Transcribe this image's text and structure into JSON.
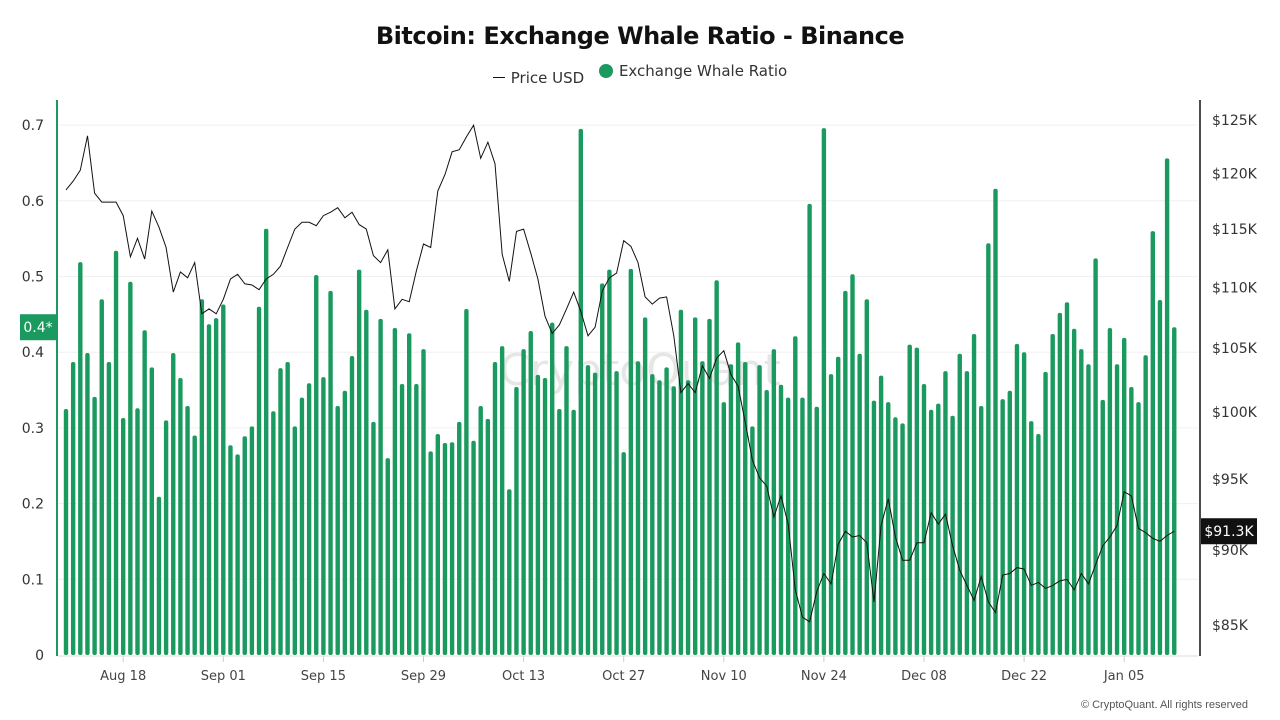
{
  "chart_data": {
    "type": "bar+line",
    "title": "Bitcoin: Exchange Whale Ratio - Binance",
    "legend": [
      "Price USD",
      "Exchange Whale Ratio"
    ],
    "legend_placement": "top-center",
    "colors": {
      "bars": "#1a9a5e",
      "price": "#111111",
      "left_axis": "#1a9a5e",
      "right_axis": "#111111"
    },
    "x_tick_labels": [
      "Aug 18",
      "Sep 01",
      "Sep 15",
      "Sep 29",
      "Oct 13",
      "Oct 27",
      "Nov 10",
      "Nov 24",
      "Dec 08",
      "Dec 22",
      "Jan 05"
    ],
    "left_axis": {
      "ticks": [
        "0",
        "0.1",
        "0.2",
        "0.3",
        "0.4",
        "0.5",
        "0.6",
        "0.7"
      ],
      "ylim": [
        0,
        0.7
      ]
    },
    "right_axis": {
      "scale": "log",
      "ticks": [
        "$85K",
        "$90K",
        "$95K",
        "$100K",
        "$105K",
        "$110K",
        "$115K",
        "$120K",
        "$125K"
      ],
      "ylim_k": [
        83,
        127
      ]
    },
    "grid": "horizontal",
    "current_ratio_label": "0.4*",
    "current_price_label": "$91.3K",
    "x": [
      "Aug 10",
      "Aug 11",
      "Aug 12",
      "Aug 13",
      "Aug 14",
      "Aug 15",
      "Aug 16",
      "Aug 17",
      "Aug 18",
      "Aug 19",
      "Aug 20",
      "Aug 21",
      "Aug 22",
      "Aug 23",
      "Aug 24",
      "Aug 25",
      "Aug 26",
      "Aug 27",
      "Aug 28",
      "Aug 29",
      "Aug 30",
      "Aug 31",
      "Sep 01",
      "Sep 02",
      "Sep 03",
      "Sep 04",
      "Sep 05",
      "Sep 06",
      "Sep 07",
      "Sep 08",
      "Sep 09",
      "Sep 10",
      "Sep 11",
      "Sep 12",
      "Sep 13",
      "Sep 14",
      "Sep 15",
      "Sep 16",
      "Sep 17",
      "Sep 18",
      "Sep 19",
      "Sep 20",
      "Sep 21",
      "Sep 22",
      "Sep 23",
      "Sep 24",
      "Sep 25",
      "Sep 26",
      "Sep 27",
      "Sep 28",
      "Sep 29",
      "Sep 30",
      "Oct 01",
      "Oct 02",
      "Oct 03",
      "Oct 04",
      "Oct 05",
      "Oct 06",
      "Oct 07",
      "Oct 08",
      "Oct 09",
      "Oct 10",
      "Oct 11",
      "Oct 12",
      "Oct 13",
      "Oct 14",
      "Oct 15",
      "Oct 16",
      "Oct 17",
      "Oct 18",
      "Oct 19",
      "Oct 20",
      "Oct 21",
      "Oct 22",
      "Oct 23",
      "Oct 24",
      "Oct 25",
      "Oct 26",
      "Oct 27",
      "Oct 28",
      "Oct 29",
      "Oct 30",
      "Oct 31",
      "Nov 01",
      "Nov 02",
      "Nov 03",
      "Nov 04",
      "Nov 05",
      "Nov 06",
      "Nov 07",
      "Nov 08",
      "Nov 09",
      "Nov 10",
      "Nov 11",
      "Nov 12",
      "Nov 13",
      "Nov 14",
      "Nov 15",
      "Nov 16",
      "Nov 17",
      "Nov 18",
      "Nov 19",
      "Nov 20",
      "Nov 21",
      "Nov 22",
      "Nov 23",
      "Nov 24",
      "Nov 25",
      "Nov 26",
      "Nov 27",
      "Nov 28",
      "Nov 29",
      "Nov 30",
      "Dec 01",
      "Dec 02",
      "Dec 03",
      "Dec 04",
      "Dec 05",
      "Dec 06",
      "Dec 07",
      "Dec 08",
      "Dec 09",
      "Dec 10",
      "Dec 11",
      "Dec 12",
      "Dec 13",
      "Dec 14",
      "Dec 15",
      "Dec 16",
      "Dec 17",
      "Dec 18",
      "Dec 19",
      "Dec 20",
      "Dec 21",
      "Dec 22",
      "Dec 23",
      "Dec 24",
      "Dec 25",
      "Dec 26",
      "Dec 27",
      "Dec 28",
      "Dec 29",
      "Dec 30",
      "Dec 31",
      "Jan 01",
      "Jan 02",
      "Jan 03",
      "Jan 04",
      "Jan 05",
      "Jan 06",
      "Jan 07",
      "Jan 08",
      "Jan 09",
      "Jan 10",
      "Jan 11",
      "Jan 12"
    ],
    "series": [
      {
        "name": "Exchange Whale Ratio",
        "axis": "left",
        "type": "bar",
        "values": [
          0.325,
          0.387,
          0.519,
          0.399,
          0.341,
          0.47,
          0.387,
          0.534,
          0.313,
          0.493,
          0.326,
          0.429,
          0.38,
          0.209,
          0.31,
          0.399,
          0.366,
          0.329,
          0.29,
          0.47,
          0.437,
          0.445,
          0.463,
          0.277,
          0.265,
          0.289,
          0.302,
          0.46,
          0.563,
          0.322,
          0.379,
          0.387,
          0.302,
          0.34,
          0.359,
          0.502,
          0.367,
          0.481,
          0.329,
          0.349,
          0.395,
          0.509,
          0.456,
          0.308,
          0.444,
          0.26,
          0.432,
          0.358,
          0.425,
          0.358,
          0.404,
          0.269,
          0.292,
          0.28,
          0.281,
          0.308,
          0.457,
          0.283,
          0.329,
          0.312,
          0.387,
          0.408,
          0.219,
          0.354,
          0.404,
          0.428,
          0.37,
          0.366,
          0.439,
          0.325,
          0.408,
          0.324,
          0.695,
          0.383,
          0.373,
          0.491,
          0.509,
          0.375,
          0.268,
          0.51,
          0.388,
          0.446,
          0.371,
          0.363,
          0.38,
          0.355,
          0.456,
          0.363,
          0.446,
          0.388,
          0.444,
          0.495,
          0.334,
          0.384,
          0.413,
          0.387,
          0.302,
          0.383,
          0.35,
          0.404,
          0.357,
          0.34,
          0.421,
          0.34,
          0.596,
          0.328,
          0.696,
          0.371,
          0.394,
          0.481,
          0.503,
          0.398,
          0.47,
          0.336,
          0.369,
          0.334,
          0.314,
          0.306,
          0.41,
          0.406,
          0.358,
          0.324,
          0.332,
          0.375,
          0.316,
          0.398,
          0.375,
          0.424,
          0.329,
          0.544,
          0.616,
          0.338,
          0.349,
          0.411,
          0.4,
          0.309,
          0.292,
          0.374,
          0.424,
          0.452,
          0.466,
          0.431,
          0.404,
          0.384,
          0.524,
          0.337,
          0.432,
          0.384,
          0.419,
          0.354,
          0.334,
          0.396,
          0.56,
          0.469,
          0.656,
          0.433
        ]
      },
      {
        "name": "Price USD",
        "axis": "right",
        "type": "line",
        "unit": "K USD",
        "values": [
          118.5,
          119.3,
          120.3,
          123.5,
          118.2,
          117.4,
          117.4,
          117.4,
          116.2,
          112.6,
          114.2,
          112.4,
          116.6,
          115.2,
          113.4,
          109.6,
          111.3,
          110.8,
          112.1,
          107.8,
          108.2,
          107.8,
          109,
          110.7,
          111.1,
          110.3,
          110.2,
          109.8,
          110.7,
          111.1,
          111.8,
          113.4,
          115,
          115.6,
          115.6,
          115.3,
          116.2,
          116.5,
          116.9,
          116,
          116.5,
          115.4,
          115,
          112.7,
          112.1,
          113.2,
          108.2,
          109,
          108.8,
          111.4,
          113.7,
          113.4,
          118.4,
          119.9,
          122,
          122.2,
          123.4,
          124.5,
          121.4,
          122.9,
          120.9,
          112.8,
          110.5,
          114.8,
          115,
          112.9,
          110.7,
          107.6,
          106.2,
          106.9,
          108.2,
          109.6,
          108,
          106,
          106.7,
          109.7,
          110.8,
          111.2,
          114,
          113.5,
          112.1,
          109.2,
          108.6,
          109.1,
          109.2,
          106,
          101.5,
          102.2,
          101.5,
          103.6,
          102.6,
          104.2,
          104.8,
          102.9,
          102,
          99.2,
          96.4,
          95.1,
          94.5,
          92.3,
          93.8,
          91.8,
          87.3,
          85.5,
          85.2,
          87.2,
          88.4,
          87.7,
          90.4,
          91.3,
          90.9,
          91,
          90.5,
          86.5,
          91.7,
          93.6,
          90.9,
          89.3,
          89.3,
          90.5,
          90.5,
          92.6,
          91.8,
          92.5,
          90.3,
          88.6,
          87.6,
          86.6,
          88.2,
          86.5,
          85.8,
          88.3,
          88.4,
          88.8,
          88.7,
          87.6,
          87.8,
          87.4,
          87.6,
          87.9,
          88,
          87.3,
          88.4,
          87.7,
          89,
          90.3,
          90.9,
          91.7,
          94.1,
          93.8,
          91.5,
          91.2,
          90.8,
          90.6,
          91,
          91.3
        ]
      }
    ],
    "watermark": "CryptoQuant",
    "copyright": "© CryptoQuant. All rights reserved"
  }
}
